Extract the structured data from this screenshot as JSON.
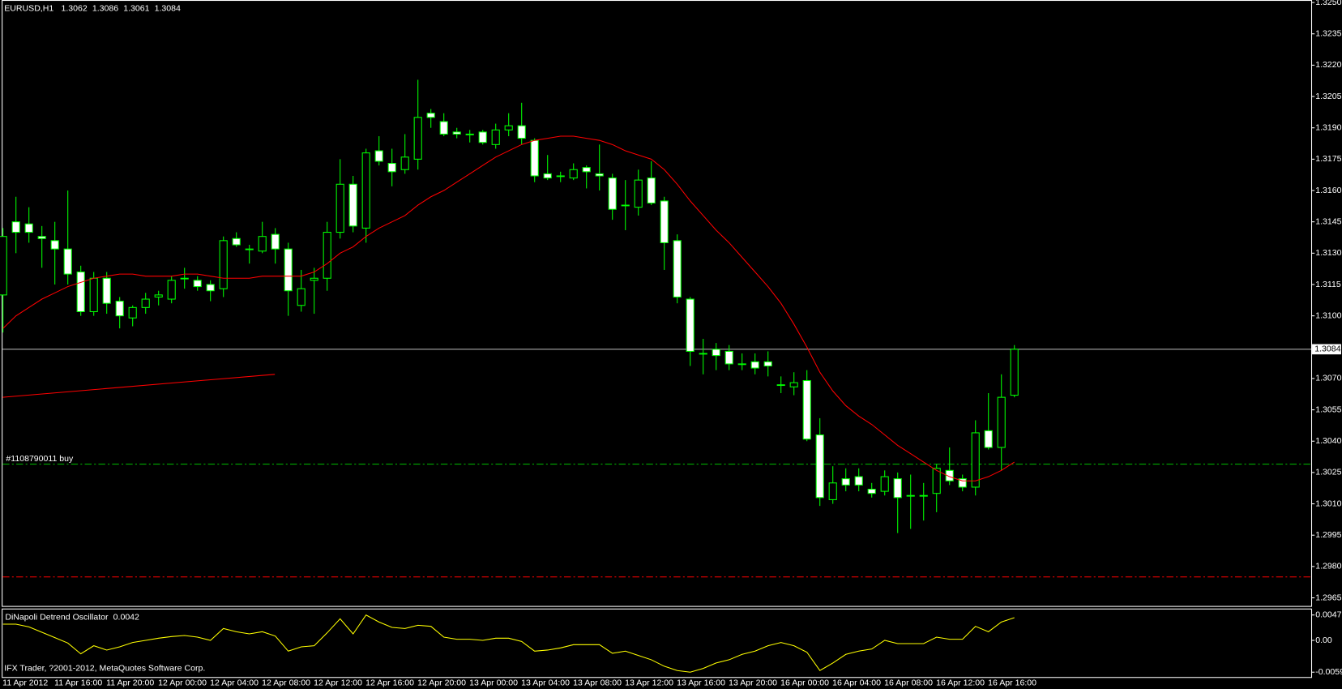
{
  "chart_data": {
    "type": "candlestick",
    "title": "EURUSD,H1",
    "categories": [
      "11 Apr 2012",
      null,
      null,
      null,
      "11 Apr 16:00",
      null,
      null,
      null,
      "11 Apr 20:00",
      null,
      null,
      null,
      "12 Apr 00:00",
      null,
      null,
      null,
      "12 Apr 04:00",
      null,
      null,
      null,
      "12 Apr 08:00",
      null,
      null,
      null,
      "12 Apr 12:00",
      null,
      null,
      null,
      "12 Apr 16:00",
      null,
      null,
      null,
      "12 Apr 20:00",
      null,
      null,
      null,
      "13 Apr 00:00",
      null,
      null,
      null,
      "13 Apr 04:00",
      null,
      null,
      null,
      "13 Apr 08:00",
      null,
      null,
      null,
      "13 Apr 12:00",
      null,
      null,
      null,
      "13 Apr 16:00",
      null,
      null,
      null,
      "13 Apr 20:00",
      null,
      null,
      null,
      "16 Apr 00:00",
      null,
      null,
      null,
      "16 Apr 04:00",
      null,
      null,
      null,
      "16 Apr 08:00",
      null,
      null,
      null,
      "16 Apr 12:00",
      null,
      null,
      null,
      "16 Apr 16:00",
      null,
      null
    ],
    "open": [
      1.311,
      1.3145,
      1.3144,
      1.3138,
      1.3136,
      1.3132,
      1.3121,
      1.3102,
      1.3118,
      1.3107,
      1.3099,
      1.3104,
      1.3109,
      1.3108,
      1.3118,
      1.3117,
      1.3115,
      1.3113,
      1.3137,
      1.3132,
      1.3131,
      1.3139,
      1.3132,
      1.3105,
      1.3117,
      1.3118,
      1.314,
      1.3163,
      1.3142,
      1.3179,
      1.3173,
      1.317,
      1.3175,
      1.3197,
      1.3193,
      1.3188,
      1.3187,
      1.3188,
      1.3182,
      1.3189,
      1.3191,
      1.3184,
      1.3168,
      1.3167,
      1.3166,
      1.3171,
      1.3168,
      1.3166,
      1.3153,
      1.3152,
      1.3166,
      1.3155,
      1.3136,
      1.3108,
      1.3082,
      1.3084,
      1.3083,
      1.3077,
      1.3078,
      1.3078,
      1.3067,
      1.3066,
      1.3069,
      1.3043,
      1.3012,
      1.3022,
      1.3023,
      1.3017,
      1.3016,
      1.3022,
      1.3014,
      1.3014,
      1.3015,
      1.3026,
      1.3022,
      1.3018,
      1.3045,
      1.3037,
      1.3062
    ],
    "high": [
      1.3142,
      1.3157,
      1.3152,
      1.3143,
      1.3145,
      1.316,
      1.3124,
      1.3121,
      1.3121,
      1.3109,
      1.3105,
      1.3111,
      1.3112,
      1.3119,
      1.3123,
      1.3119,
      1.3117,
      1.3138,
      1.314,
      1.3134,
      1.3145,
      1.3142,
      1.3135,
      1.3122,
      1.3123,
      1.3145,
      1.3175,
      1.3167,
      1.318,
      1.3186,
      1.318,
      1.3187,
      1.3213,
      1.3199,
      1.3197,
      1.319,
      1.3189,
      1.3189,
      1.3192,
      1.3197,
      1.3202,
      1.3185,
      1.3177,
      1.3169,
      1.3173,
      1.3172,
      1.3182,
      1.3168,
      1.3165,
      1.317,
      1.3174,
      1.3157,
      1.3139,
      1.3109,
      1.3089,
      1.3087,
      1.3086,
      1.3082,
      1.3082,
      1.3083,
      1.3071,
      1.3073,
      1.3074,
      1.3051,
      1.3028,
      1.3027,
      1.3027,
      1.302,
      1.3026,
      1.3025,
      1.3024,
      1.302,
      1.3029,
      1.3037,
      1.3024,
      1.305,
      1.3063,
      1.3072,
      1.3086
    ],
    "low": [
      1.3092,
      1.313,
      1.3135,
      1.3123,
      1.3115,
      1.3115,
      1.31,
      1.31,
      1.3101,
      1.3094,
      1.3095,
      1.3101,
      1.3105,
      1.3106,
      1.3113,
      1.3112,
      1.3107,
      1.3109,
      1.3133,
      1.3125,
      1.313,
      1.3125,
      1.31,
      1.3102,
      1.3101,
      1.3112,
      1.3137,
      1.314,
      1.3135,
      1.3172,
      1.3162,
      1.3168,
      1.317,
      1.319,
      1.3186,
      1.3185,
      1.3183,
      1.3182,
      1.318,
      1.3186,
      1.3182,
      1.3164,
      1.3165,
      1.3164,
      1.3165,
      1.3161,
      1.316,
      1.3146,
      1.3141,
      1.3148,
      1.3153,
      1.3122,
      1.3106,
      1.3076,
      1.3072,
      1.3074,
      1.3074,
      1.3074,
      1.3072,
      1.3071,
      1.3063,
      1.3062,
      1.304,
      1.3009,
      1.301,
      1.3016,
      1.3016,
      1.3013,
      1.3014,
      1.2996,
      1.2998,
      1.3002,
      1.3006,
      1.3019,
      1.3016,
      1.3014,
      1.3036,
      1.3026,
      1.3061
    ],
    "close": [
      1.3138,
      1.314,
      1.314,
      1.3137,
      1.3132,
      1.312,
      1.3102,
      1.3118,
      1.3106,
      1.31,
      1.3104,
      1.3108,
      1.311,
      1.3117,
      1.3118,
      1.3114,
      1.3112,
      1.3136,
      1.3134,
      1.3132,
      1.3138,
      1.3132,
      1.3112,
      1.3113,
      1.3118,
      1.314,
      1.3163,
      1.3143,
      1.3178,
      1.3174,
      1.3169,
      1.3176,
      1.3195,
      1.3195,
      1.3187,
      1.3187,
      1.3187,
      1.3183,
      1.3189,
      1.3191,
      1.3185,
      1.3167,
      1.3166,
      1.3167,
      1.317,
      1.3169,
      1.3167,
      1.3151,
      1.3153,
      1.3165,
      1.3154,
      1.3135,
      1.3109,
      1.3083,
      1.3082,
      1.3081,
      1.3077,
      1.3077,
      1.3075,
      1.3076,
      1.3067,
      1.3068,
      1.3041,
      1.3013,
      1.302,
      1.3019,
      1.3019,
      1.3015,
      1.3023,
      1.3013,
      1.3014,
      1.3014,
      1.3027,
      1.3021,
      1.3018,
      1.3044,
      1.3037,
      1.3061,
      1.3084
    ],
    "candle_color": "#00ff00",
    "bull_fill": "#000000",
    "bear_fill": "#ffffff",
    "ma": {
      "color": "#ff0000",
      "values": [
        1.3094,
        1.31,
        1.3104,
        1.3108,
        1.3111,
        1.3114,
        1.3116,
        1.3118,
        1.3119,
        1.312,
        1.312,
        1.3119,
        1.3119,
        1.3119,
        1.312,
        1.312,
        1.3119,
        1.3118,
        1.3118,
        1.3118,
        1.3119,
        1.3119,
        1.3119,
        1.3119,
        1.3121,
        1.3125,
        1.313,
        1.3133,
        1.3138,
        1.3142,
        1.3145,
        1.3148,
        1.3153,
        1.3157,
        1.316,
        1.3164,
        1.3168,
        1.3172,
        1.3176,
        1.3179,
        1.3182,
        1.3184,
        1.3185,
        1.3186,
        1.3186,
        1.3185,
        1.3184,
        1.3182,
        1.3179,
        1.3177,
        1.3175,
        1.317,
        1.3163,
        1.3155,
        1.3148,
        1.3141,
        1.3135,
        1.3128,
        1.3121,
        1.3114,
        1.3106,
        1.3096,
        1.3085,
        1.3073,
        1.3064,
        1.3057,
        1.3052,
        1.3048,
        1.3043,
        1.3038,
        1.3034,
        1.303,
        1.3026,
        1.3023,
        1.3021,
        1.3021,
        1.3023,
        1.3026,
        1.303
      ]
    },
    "trendline": {
      "color": "#ff0000",
      "values": [
        1.3061,
        1.3072
      ]
    },
    "order": {
      "label": "#1108790011 buy",
      "price": 1.3029,
      "color": "#00c000"
    },
    "stop_price": 1.2975,
    "stop_color": "#ff0000",
    "ylim": [
      1.29611,
      1.32512
    ],
    "yticks": [
      {
        "value": 1.325,
        "label": "1.3250"
      },
      1.3235,
      {
        "value": 1.322,
        "label": "1.3220"
      },
      1.3205,
      {
        "value": 1.319,
        "label": "1.3190"
      },
      1.3175,
      {
        "value": 1.316,
        "label": "1.3160"
      },
      1.3145,
      {
        "value": 1.313,
        "label": "1.3130"
      },
      1.3115,
      {
        "value": 1.31,
        "label": "1.3100"
      },
      {
        "value": 1.307,
        "label": "1.3070"
      },
      1.3055,
      {
        "value": 1.304,
        "label": "1.3040"
      },
      1.3025,
      {
        "value": 1.301,
        "label": "1.3010"
      },
      1.2995,
      {
        "value": 1.298,
        "label": "1.2980"
      },
      1.2965
    ],
    "oscillator": {
      "title": "DiNapoli Detrend Oscillator",
      "color": "#ffff00",
      "values": [
        0.003,
        0.003,
        0.0025,
        0.0015,
        0.0005,
        -0.0005,
        -0.0025,
        -0.001,
        -0.0018,
        -0.0012,
        -0.0004,
        0.0,
        0.0004,
        0.0007,
        0.0009,
        0.0006,
        0.0,
        0.0022,
        0.0016,
        0.0012,
        0.0016,
        0.0008,
        -0.002,
        -0.0012,
        -0.001,
        0.0014,
        0.004,
        0.0012,
        0.0047,
        0.0034,
        0.0024,
        0.0022,
        0.0028,
        0.0026,
        0.0006,
        0.0002,
        0.0002,
        0.0,
        0.0004,
        0.0004,
        -0.0002,
        -0.002,
        -0.0018,
        -0.0014,
        -0.0008,
        -0.0008,
        -0.0008,
        -0.0024,
        -0.002,
        -0.0028,
        -0.0036,
        -0.0048,
        -0.0056,
        -0.0059,
        -0.0052,
        -0.0042,
        -0.0036,
        -0.0026,
        -0.002,
        -0.001,
        -0.0004,
        -0.001,
        -0.0022,
        -0.0056,
        -0.0042,
        -0.0026,
        -0.002,
        -0.0016,
        0.0,
        -0.0006,
        -0.0006,
        -0.0006,
        0.0006,
        0.0002,
        0.0002,
        0.0026,
        0.0016,
        0.0034,
        0.0042
      ],
      "ylim": [
        -0.0068,
        0.0059
      ],
      "yticks": [
        0.0047,
        {
          "value": 0,
          "label": "0.00"
        },
        -0.0059
      ]
    },
    "annotation": "IFX Trader, ?2001-2012, MetaQuotes Software Corp."
  }
}
